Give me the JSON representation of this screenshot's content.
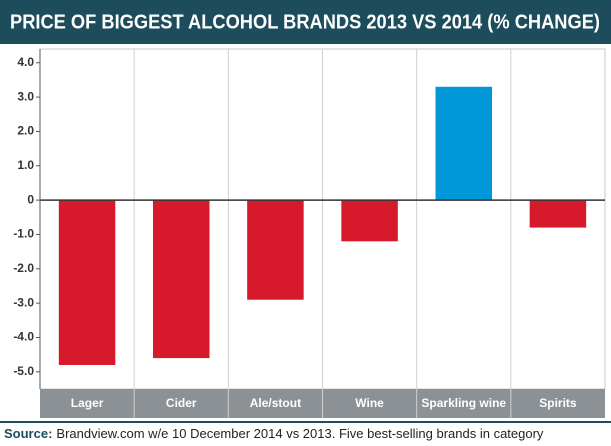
{
  "chart_data": {
    "type": "bar",
    "title": "PRICE OF BIGGEST ALCOHOL BRANDS 2013 VS 2014 (% CHANGE)",
    "categories": [
      "Lager",
      "Cider",
      "Ale/stout",
      "Wine",
      "Sparkling wine",
      "Spirits"
    ],
    "values": [
      -4.8,
      -4.6,
      -2.9,
      -1.2,
      3.3,
      -0.8
    ],
    "colors": [
      "#d71a2b",
      "#d71a2b",
      "#d71a2b",
      "#d71a2b",
      "#0098d8",
      "#d71a2b"
    ],
    "ylim": [
      -5.5,
      4.4
    ],
    "yticks": [
      {
        "value": 4,
        "label": "4.0"
      },
      {
        "value": 3,
        "label": "3.0"
      },
      {
        "value": 2,
        "label": "2.0"
      },
      {
        "value": 1,
        "label": "1.0"
      },
      0,
      {
        "value": -1,
        "label": "-1.0"
      },
      {
        "value": -2,
        "label": "-2.0"
      },
      {
        "value": -3,
        "label": "-3.0"
      },
      {
        "value": -4,
        "label": "-4.0"
      },
      {
        "value": -5,
        "label": "-5.0"
      }
    ],
    "source_label": "Source:",
    "source_text": "Brandview.com w/e 10 December 2014 vs 2013. Five best-selling brands in category"
  }
}
